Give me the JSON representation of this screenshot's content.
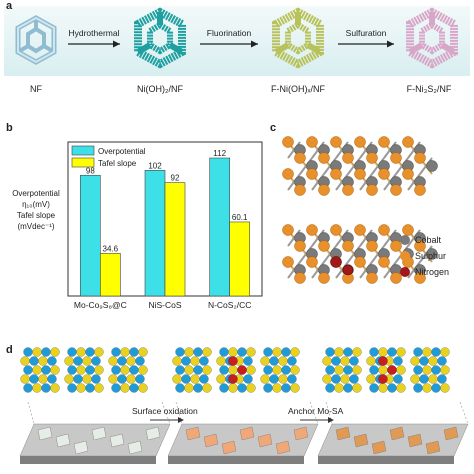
{
  "panel_a": {
    "letter": "a",
    "stages": [
      "NF",
      "Ni(OH)₂/NF",
      "F-Ni(OH)ₓ/NF",
      "F-Ni₃S₂/NF"
    ],
    "steps": [
      "Hydrothermal",
      "Fluorination",
      "Sulfuration"
    ],
    "colors": [
      "#a9d3e4",
      "#1e9fa0",
      "#c9d36a",
      "#d8a6c9"
    ]
  },
  "panel_b": {
    "letter": "b",
    "chart_data": {
      "type": "bar",
      "categories": [
        "Mo-Co₉S₈@C",
        "NiS-CoS",
        "N-CoS₂/CC"
      ],
      "series": [
        {
          "name": "Overpotential",
          "values": [
            98,
            102,
            112
          ],
          "color": "#3ee0e8"
        },
        {
          "name": "Tafel slope",
          "values": [
            34.6,
            92,
            60.1
          ],
          "color": "#ffff00"
        }
      ],
      "data_labels": [
        [
          "98",
          "102",
          "112"
        ],
        [
          "34.6",
          "92",
          "60.1"
        ]
      ],
      "ylabel_lines": [
        "Overpotential",
        "η₁₀(mV)",
        "Tafel slope",
        "(mVdec⁻¹)"
      ],
      "ylim": [
        0,
        125
      ],
      "legend_position": "top-left"
    }
  },
  "panel_c": {
    "letter": "c",
    "legend": [
      {
        "label": "Cobalt",
        "color": "#7a7a7a"
      },
      {
        "label": "Sulphur",
        "color": "#e8902a"
      },
      {
        "label": "Nitrogen",
        "color": "#a01818"
      }
    ]
  },
  "panel_d": {
    "letter": "d",
    "captions": [
      "Surface oxidation",
      "Anchor Mo-SA"
    ],
    "colors": {
      "atom_blue": "#1f9bd8",
      "atom_yellow": "#e8d21e",
      "atom_red": "#c81e1e"
    }
  }
}
